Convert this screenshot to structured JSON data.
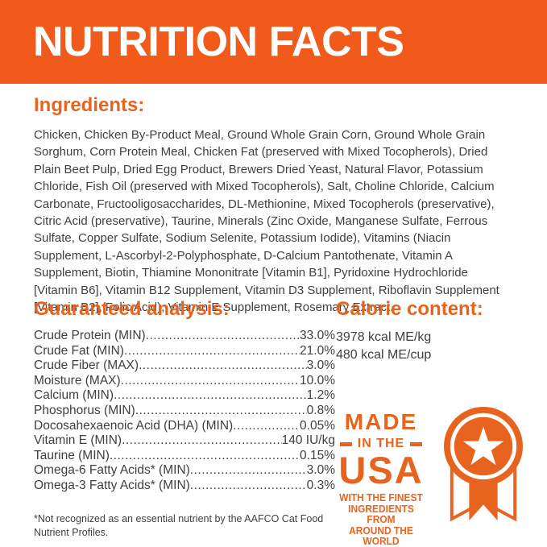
{
  "header": {
    "title": "NUTRITION FACTS"
  },
  "ingredients": {
    "heading": "Ingredients:",
    "text": "Chicken, Chicken By-Product Meal, Ground Whole Grain Corn, Ground Whole Grain\nSorghum, Corn Protein Meal, Chicken Fat (preserved with Mixed Tocopherols), Dried\nPlain Beet Pulp, Dried Egg Product, Brewers Dried Yeast, Natural Flavor, Potassium\nChloride, Fish Oil (preserved with Mixed Tocopherols), Salt, Choline Chloride, Calcium\nCarbonate, Fructooligosaccharides, DL-Methionine, Mixed Tocopherols (preservative),\nCitric Acid (preservative), Taurine, Minerals (Zinc Oxide, Manganese Sulfate, Ferrous\nSulfate, Copper Sulfate, Sodium Selenite, Potassium Iodide), Vitamins (Niacin\nSupplement, L-Ascorbyl-2-Polyphosphate, D-Calcium Pantothenate, Vitamin A\nSupplement, Biotin, Thiamine Mononitrate [Vitamin B1], Pyridoxine Hydrochloride\n[Vitamin B6], Vitamin B12 Supplement, Vitamin D3 Supplement, Riboflavin Supplement\n[Vitamin B2], Folic Acid), Vitamin E Supplement, Rosemary Extract."
  },
  "guaranteed_analysis": {
    "heading": "Guaranteed analysis:",
    "rows": [
      {
        "label": "Crude Protein (MIN)",
        "value": "33.0%"
      },
      {
        "label": "Crude Fat (MIN)",
        "value": "21.0%"
      },
      {
        "label": "Crude Fiber (MAX)",
        "value": "3.0%"
      },
      {
        "label": "Moisture (MAX)",
        "value": "10.0%"
      },
      {
        "label": "Calcium (MIN)",
        "value": "1.2%"
      },
      {
        "label": "Phosphorus (MIN)",
        "value": "0.8%"
      },
      {
        "label": "Docosahexaenoic Acid (DHA) (MIN)",
        "value": "0.05%"
      },
      {
        "label": "Vitamin E (MIN)",
        "value": "140 IU/kg"
      },
      {
        "label": "Taurine (MIN)",
        "value": "0.15%"
      },
      {
        "label": "Omega-6 Fatty Acids* (MIN)",
        "value": "3.0%"
      },
      {
        "label": "Omega-3 Fatty Acids* (MIN)",
        "value": "0.3%"
      }
    ]
  },
  "calorie_content": {
    "heading": "Calorie content:",
    "lines": [
      "3978 kcal ME/kg",
      "480 kcal ME/cup"
    ]
  },
  "made_in_usa": {
    "word1": "MADE",
    "word2": "IN THE",
    "word3": "USA",
    "tagline": "WITH THE FINEST\nINGREDIENTS FROM\nAROUND THE WORLD",
    "icon": "star-medal-ribbon-icon"
  },
  "footnote": "*Not recognized as an essential nutrient by the AAFCO Cat Food\nNutrient Profiles.",
  "colors": {
    "header_orange": "#F15A1B",
    "accent_orange": "#E8641E",
    "text_gray": "#3F3F3F"
  }
}
